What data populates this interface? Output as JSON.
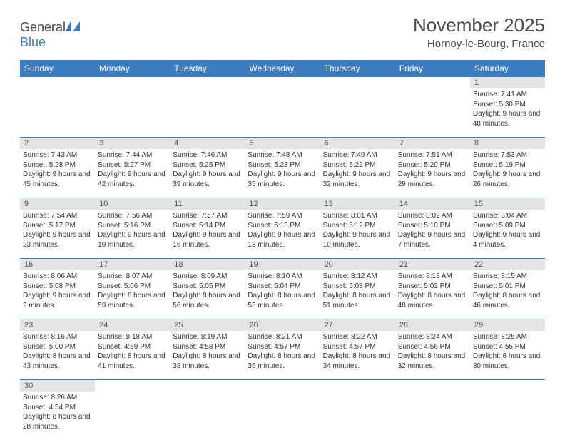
{
  "brand": {
    "part1": "General",
    "part2": "Blue"
  },
  "title": "November 2025",
  "location": "Hornoy-le-Bourg, France",
  "colors": {
    "header_bg": "#3b7bbf",
    "header_text": "#ffffff",
    "daynum_bg": "#e4e4e4",
    "divider": "#3b7bbf",
    "body_text": "#333333",
    "title_text": "#4a4a4a"
  },
  "day_names": [
    "Sunday",
    "Monday",
    "Tuesday",
    "Wednesday",
    "Thursday",
    "Friday",
    "Saturday"
  ],
  "weeks": [
    [
      null,
      null,
      null,
      null,
      null,
      null,
      {
        "n": "1",
        "sunrise": "Sunrise: 7:41 AM",
        "sunset": "Sunset: 5:30 PM",
        "daylight": "Daylight: 9 hours and 48 minutes."
      }
    ],
    [
      {
        "n": "2",
        "sunrise": "Sunrise: 7:43 AM",
        "sunset": "Sunset: 5:28 PM",
        "daylight": "Daylight: 9 hours and 45 minutes."
      },
      {
        "n": "3",
        "sunrise": "Sunrise: 7:44 AM",
        "sunset": "Sunset: 5:27 PM",
        "daylight": "Daylight: 9 hours and 42 minutes."
      },
      {
        "n": "4",
        "sunrise": "Sunrise: 7:46 AM",
        "sunset": "Sunset: 5:25 PM",
        "daylight": "Daylight: 9 hours and 39 minutes."
      },
      {
        "n": "5",
        "sunrise": "Sunrise: 7:48 AM",
        "sunset": "Sunset: 5:23 PM",
        "daylight": "Daylight: 9 hours and 35 minutes."
      },
      {
        "n": "6",
        "sunrise": "Sunrise: 7:49 AM",
        "sunset": "Sunset: 5:22 PM",
        "daylight": "Daylight: 9 hours and 32 minutes."
      },
      {
        "n": "7",
        "sunrise": "Sunrise: 7:51 AM",
        "sunset": "Sunset: 5:20 PM",
        "daylight": "Daylight: 9 hours and 29 minutes."
      },
      {
        "n": "8",
        "sunrise": "Sunrise: 7:53 AM",
        "sunset": "Sunset: 5:19 PM",
        "daylight": "Daylight: 9 hours and 26 minutes."
      }
    ],
    [
      {
        "n": "9",
        "sunrise": "Sunrise: 7:54 AM",
        "sunset": "Sunset: 5:17 PM",
        "daylight": "Daylight: 9 hours and 23 minutes."
      },
      {
        "n": "10",
        "sunrise": "Sunrise: 7:56 AM",
        "sunset": "Sunset: 5:16 PM",
        "daylight": "Daylight: 9 hours and 19 minutes."
      },
      {
        "n": "11",
        "sunrise": "Sunrise: 7:57 AM",
        "sunset": "Sunset: 5:14 PM",
        "daylight": "Daylight: 9 hours and 16 minutes."
      },
      {
        "n": "12",
        "sunrise": "Sunrise: 7:59 AM",
        "sunset": "Sunset: 5:13 PM",
        "daylight": "Daylight: 9 hours and 13 minutes."
      },
      {
        "n": "13",
        "sunrise": "Sunrise: 8:01 AM",
        "sunset": "Sunset: 5:12 PM",
        "daylight": "Daylight: 9 hours and 10 minutes."
      },
      {
        "n": "14",
        "sunrise": "Sunrise: 8:02 AM",
        "sunset": "Sunset: 5:10 PM",
        "daylight": "Daylight: 9 hours and 7 minutes."
      },
      {
        "n": "15",
        "sunrise": "Sunrise: 8:04 AM",
        "sunset": "Sunset: 5:09 PM",
        "daylight": "Daylight: 9 hours and 4 minutes."
      }
    ],
    [
      {
        "n": "16",
        "sunrise": "Sunrise: 8:06 AM",
        "sunset": "Sunset: 5:08 PM",
        "daylight": "Daylight: 9 hours and 2 minutes."
      },
      {
        "n": "17",
        "sunrise": "Sunrise: 8:07 AM",
        "sunset": "Sunset: 5:06 PM",
        "daylight": "Daylight: 8 hours and 59 minutes."
      },
      {
        "n": "18",
        "sunrise": "Sunrise: 8:09 AM",
        "sunset": "Sunset: 5:05 PM",
        "daylight": "Daylight: 8 hours and 56 minutes."
      },
      {
        "n": "19",
        "sunrise": "Sunrise: 8:10 AM",
        "sunset": "Sunset: 5:04 PM",
        "daylight": "Daylight: 8 hours and 53 minutes."
      },
      {
        "n": "20",
        "sunrise": "Sunrise: 8:12 AM",
        "sunset": "Sunset: 5:03 PM",
        "daylight": "Daylight: 8 hours and 51 minutes."
      },
      {
        "n": "21",
        "sunrise": "Sunrise: 8:13 AM",
        "sunset": "Sunset: 5:02 PM",
        "daylight": "Daylight: 8 hours and 48 minutes."
      },
      {
        "n": "22",
        "sunrise": "Sunrise: 8:15 AM",
        "sunset": "Sunset: 5:01 PM",
        "daylight": "Daylight: 8 hours and 46 minutes."
      }
    ],
    [
      {
        "n": "23",
        "sunrise": "Sunrise: 8:16 AM",
        "sunset": "Sunset: 5:00 PM",
        "daylight": "Daylight: 8 hours and 43 minutes."
      },
      {
        "n": "24",
        "sunrise": "Sunrise: 8:18 AM",
        "sunset": "Sunset: 4:59 PM",
        "daylight": "Daylight: 8 hours and 41 minutes."
      },
      {
        "n": "25",
        "sunrise": "Sunrise: 8:19 AM",
        "sunset": "Sunset: 4:58 PM",
        "daylight": "Daylight: 8 hours and 38 minutes."
      },
      {
        "n": "26",
        "sunrise": "Sunrise: 8:21 AM",
        "sunset": "Sunset: 4:57 PM",
        "daylight": "Daylight: 8 hours and 36 minutes."
      },
      {
        "n": "27",
        "sunrise": "Sunrise: 8:22 AM",
        "sunset": "Sunset: 4:57 PM",
        "daylight": "Daylight: 8 hours and 34 minutes."
      },
      {
        "n": "28",
        "sunrise": "Sunrise: 8:24 AM",
        "sunset": "Sunset: 4:56 PM",
        "daylight": "Daylight: 8 hours and 32 minutes."
      },
      {
        "n": "29",
        "sunrise": "Sunrise: 8:25 AM",
        "sunset": "Sunset: 4:55 PM",
        "daylight": "Daylight: 8 hours and 30 minutes."
      }
    ],
    [
      {
        "n": "30",
        "sunrise": "Sunrise: 8:26 AM",
        "sunset": "Sunset: 4:54 PM",
        "daylight": "Daylight: 8 hours and 28 minutes."
      },
      null,
      null,
      null,
      null,
      null,
      null
    ]
  ]
}
